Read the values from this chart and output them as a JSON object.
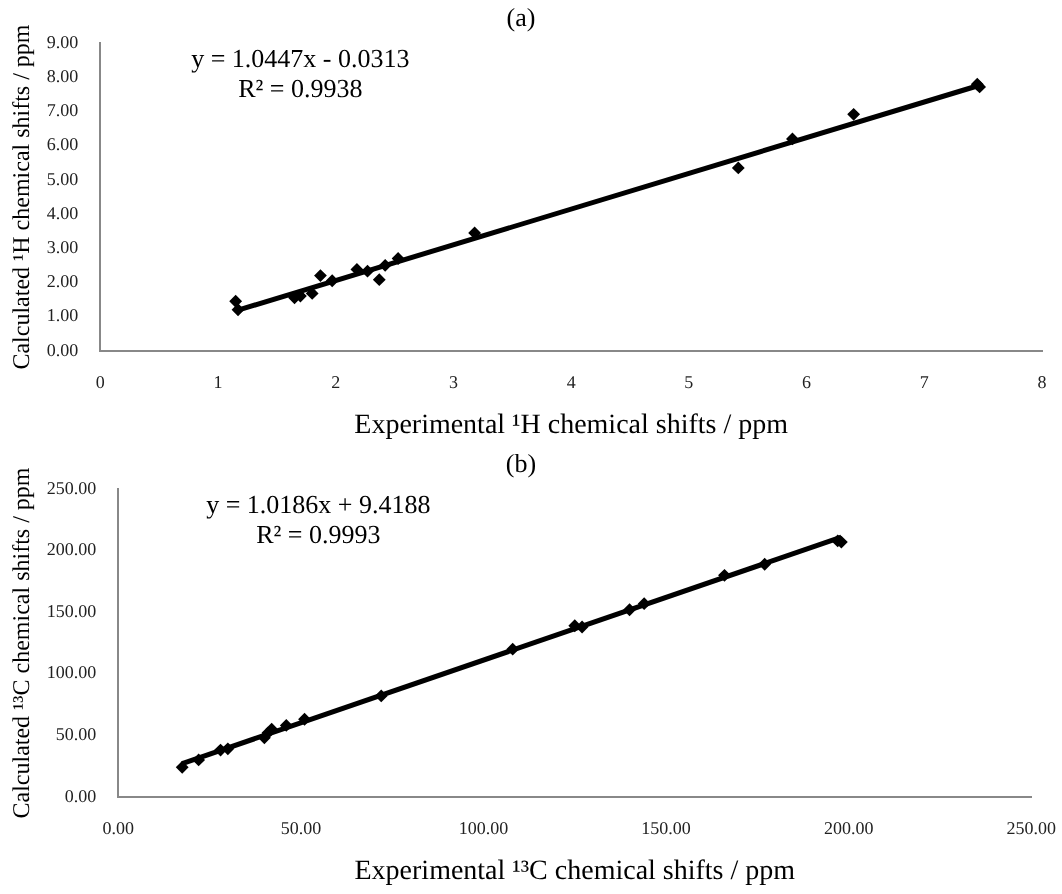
{
  "chart_data": [
    {
      "type": "scatter",
      "title": "(a)",
      "xlabel": "Experimental ¹H chemical shifts / ppm",
      "ylabel": "Calculated ¹H chemical shifts / ppm",
      "annotations": [
        "y = 1.0447x - 0.0313",
        "R² = 0.9938"
      ],
      "xlim": [
        0,
        8
      ],
      "xticks": [
        0,
        1,
        2,
        3,
        4,
        5,
        6,
        7,
        8
      ],
      "ylim": [
        0,
        9
      ],
      "yticks": [
        {
          "value": 0,
          "label": "0.00"
        },
        {
          "value": 1,
          "label": "1.00"
        },
        {
          "value": 2,
          "label": "2.00"
        },
        {
          "value": 3,
          "label": "3.00"
        },
        {
          "value": 4,
          "label": "4.00"
        },
        {
          "value": 5,
          "label": "5.00"
        },
        {
          "value": 6,
          "label": "6.00"
        },
        {
          "value": 7,
          "label": "7.00"
        },
        {
          "value": 8,
          "label": "8.00"
        },
        {
          "value": 9,
          "label": "9.00"
        }
      ],
      "series": [
        {
          "type": "scatter",
          "color": "#000000",
          "marker": "diamond",
          "x": [
            1.15,
            1.17,
            1.65,
            1.7,
            1.8,
            1.87,
            1.97,
            2.18,
            2.27,
            2.37,
            2.42,
            2.53,
            3.18,
            5.42,
            5.88,
            6.4,
            7.45,
            7.47
          ],
          "values": [
            1.45,
            1.2,
            1.55,
            1.6,
            1.68,
            2.2,
            2.05,
            2.38,
            2.33,
            2.08,
            2.5,
            2.7,
            3.45,
            5.35,
            6.2,
            6.92,
            7.8,
            7.72
          ]
        },
        {
          "type": "line",
          "color": "#000000",
          "line_style": "solid",
          "x": [
            1.17,
            7.47
          ],
          "values": [
            1.19,
            7.77
          ]
        }
      ]
    },
    {
      "type": "scatter",
      "title": "(b)",
      "xlabel": "Experimental ¹³C chemical shifts / ppm",
      "ylabel": "Calculated ¹³C chemical shifts / ppm",
      "annotations": [
        "y = 1.0186x + 9.4188",
        "R² = 0.9993"
      ],
      "xlim": [
        0,
        250
      ],
      "xticks": [
        {
          "value": 0,
          "label": "0.00"
        },
        {
          "value": 50,
          "label": "50.00"
        },
        {
          "value": 100,
          "label": "100.00"
        },
        {
          "value": 150,
          "label": "150.00"
        },
        {
          "value": 200,
          "label": "200.00"
        },
        {
          "value": 250,
          "label": "250.00"
        }
      ],
      "ylim": [
        0,
        250
      ],
      "yticks": [
        {
          "value": 0,
          "label": "0.00"
        },
        {
          "value": 50,
          "label": "50.00"
        },
        {
          "value": 100,
          "label": "100.00"
        },
        {
          "value": 150,
          "label": "150.00"
        },
        {
          "value": 200,
          "label": "200.00"
        },
        {
          "value": 250,
          "label": "250.00"
        }
      ],
      "series": [
        {
          "type": "scatter",
          "color": "#000000",
          "marker": "diamond",
          "x": [
            17.5,
            22,
            28,
            30,
            40,
            41,
            42,
            46,
            51,
            72,
            108,
            125,
            127,
            140,
            144,
            166,
            177,
            197,
            198
          ],
          "values": [
            24,
            30,
            38,
            39,
            48,
            52,
            55,
            58,
            63,
            82,
            120,
            139,
            138,
            152,
            157,
            180,
            189,
            208,
            207
          ]
        },
        {
          "type": "line",
          "color": "#000000",
          "line_style": "solid",
          "x": [
            17.5,
            198
          ],
          "values": [
            27,
            211
          ]
        }
      ]
    }
  ]
}
